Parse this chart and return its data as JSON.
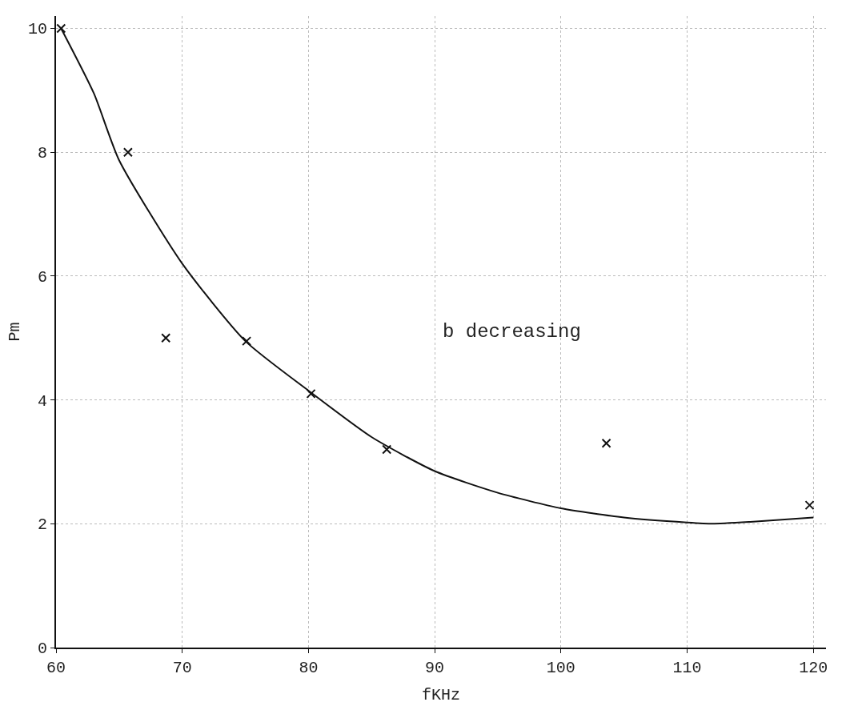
{
  "chart_data": {
    "type": "line",
    "xlabel": "fKHz",
    "ylabel": "Pm",
    "xlim": [
      60,
      121
    ],
    "ylim": [
      0,
      10.2
    ],
    "xticks": [
      60,
      70,
      80,
      90,
      100,
      110,
      120
    ],
    "yticks": [
      0,
      2,
      4,
      6,
      8,
      10
    ],
    "grid": true,
    "annotations": [
      "b decreasing"
    ],
    "series": [
      {
        "type": "scatter",
        "marker": "cross",
        "color": "#111111",
        "x": [
          60.4,
          65.7,
          68.7,
          75.1,
          80.2,
          86.2,
          103.6,
          119.7
        ],
        "values": [
          10,
          8.0,
          5.0,
          4.95,
          4.1,
          3.2,
          3.3,
          2.3
        ]
      },
      {
        "color": "#111111",
        "line_style": "solid",
        "x": [
          60.4,
          63,
          65,
          70,
          75,
          80,
          85,
          90,
          95,
          100,
          105,
          110,
          112,
          115,
          120
        ],
        "values": [
          10,
          8.95,
          7.87,
          6.2,
          4.95,
          4.15,
          3.4,
          2.85,
          2.5,
          2.25,
          2.1,
          2.02,
          2.0,
          2.03,
          2.1
        ]
      }
    ]
  }
}
